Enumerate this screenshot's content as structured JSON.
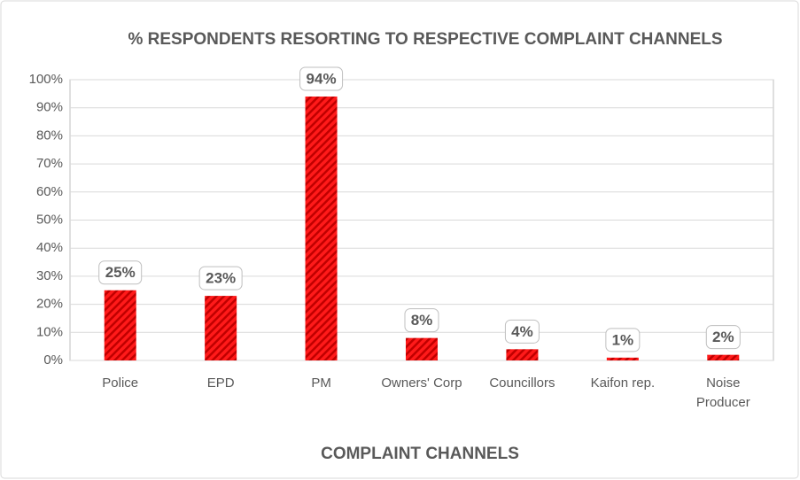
{
  "chart_data": {
    "type": "bar",
    "title": "% RESPONDENTS RESORTING TO RESPECTIVE COMPLAINT CHANNELS",
    "x_label": "COMPLAINT CHANNELS",
    "categories": [
      "Police",
      "EPD",
      "PM",
      "Owners' Corp",
      "Councillors",
      "Kaifon rep.",
      "Noise Producer"
    ],
    "values": [
      25,
      23,
      94,
      8,
      4,
      1,
      2
    ],
    "value_labels": [
      "25%",
      "23%",
      "94%",
      "8%",
      "4%",
      "1%",
      "2%"
    ],
    "color": "#e41a1c",
    "ylim": [
      0,
      100
    ],
    "yticks": [
      {
        "value": 0,
        "label": "0%"
      },
      {
        "value": 10,
        "label": "10%"
      },
      {
        "value": 20,
        "label": "20%"
      },
      {
        "value": 30,
        "label": "30%"
      },
      {
        "value": 40,
        "label": "40%"
      },
      {
        "value": 50,
        "label": "50%"
      },
      {
        "value": 60,
        "label": "60%"
      },
      {
        "value": 70,
        "label": "70%"
      },
      {
        "value": 80,
        "label": "80%"
      },
      {
        "value": 90,
        "label": "90%"
      },
      {
        "value": 100,
        "label": "100%"
      }
    ],
    "grid": true
  }
}
